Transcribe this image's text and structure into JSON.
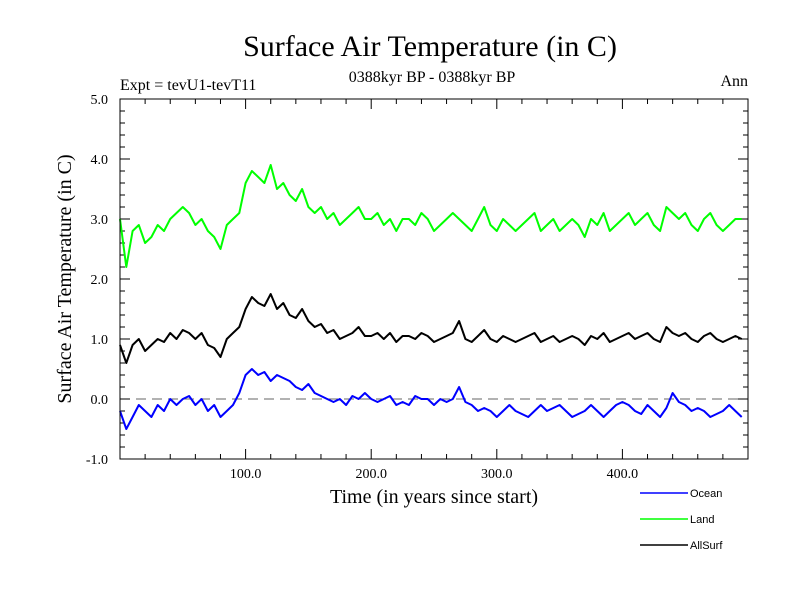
{
  "chart_data": {
    "type": "line",
    "title": "Surface Air Temperature (in C)",
    "subtitle": "0388kyr BP - 0388kyr BP",
    "expt_label": "Expt = tevU1-tevT11",
    "season_label": "Ann",
    "xlabel": "Time (in years since start)",
    "ylabel": "Surface Air Temperature (in C)",
    "xlim": [
      0,
      500
    ],
    "ylim": [
      -1.0,
      5.0
    ],
    "x_ticks": [
      100,
      200,
      300,
      400
    ],
    "x_tick_labels": [
      "100.0",
      "200.0",
      "300.0",
      "400.0"
    ],
    "y_ticks": [
      -1,
      0,
      1,
      2,
      3,
      4,
      5
    ],
    "y_tick_labels": [
      "-1.0",
      "0.0",
      "1.0",
      "2.0",
      "3.0",
      "4.0",
      "5.0"
    ],
    "reference_line": {
      "y": 0.0,
      "style": "dashed"
    },
    "legend_position": "bottom-right, below plot",
    "series": [
      {
        "name": "Ocean",
        "color": "#0000ff",
        "x": [
          0,
          5,
          10,
          15,
          20,
          25,
          30,
          35,
          40,
          45,
          50,
          55,
          60,
          65,
          70,
          75,
          80,
          85,
          90,
          95,
          100,
          105,
          110,
          115,
          120,
          125,
          130,
          135,
          140,
          145,
          150,
          155,
          160,
          165,
          170,
          175,
          180,
          185,
          190,
          195,
          200,
          205,
          210,
          215,
          220,
          225,
          230,
          235,
          240,
          245,
          250,
          255,
          260,
          265,
          270,
          275,
          280,
          285,
          290,
          295,
          300,
          305,
          310,
          315,
          320,
          325,
          330,
          335,
          340,
          345,
          350,
          355,
          360,
          365,
          370,
          375,
          380,
          385,
          390,
          395,
          400,
          405,
          410,
          415,
          420,
          425,
          430,
          435,
          440,
          445,
          450,
          455,
          460,
          465,
          470,
          475,
          480,
          485,
          490,
          495
        ],
        "values": [
          -0.2,
          -0.5,
          -0.3,
          -0.1,
          -0.2,
          -0.3,
          -0.1,
          -0.2,
          0.0,
          -0.1,
          0.0,
          0.05,
          -0.1,
          0.0,
          -0.2,
          -0.1,
          -0.3,
          -0.2,
          -0.1,
          0.1,
          0.4,
          0.5,
          0.4,
          0.45,
          0.3,
          0.4,
          0.35,
          0.3,
          0.2,
          0.15,
          0.25,
          0.1,
          0.05,
          0.0,
          -0.05,
          0.0,
          -0.1,
          0.05,
          0.0,
          0.1,
          0.0,
          -0.05,
          0.0,
          0.05,
          -0.1,
          -0.05,
          -0.1,
          0.05,
          0.0,
          0.0,
          -0.1,
          0.0,
          -0.05,
          0.0,
          0.2,
          -0.05,
          -0.1,
          -0.2,
          -0.15,
          -0.2,
          -0.3,
          -0.2,
          -0.1,
          -0.2,
          -0.25,
          -0.3,
          -0.2,
          -0.1,
          -0.2,
          -0.15,
          -0.1,
          -0.2,
          -0.3,
          -0.25,
          -0.2,
          -0.1,
          -0.2,
          -0.3,
          -0.2,
          -0.1,
          -0.05,
          -0.1,
          -0.2,
          -0.25,
          -0.1,
          -0.2,
          -0.3,
          -0.15,
          0.1,
          -0.05,
          -0.1,
          -0.2,
          -0.15,
          -0.2,
          -0.3,
          -0.25,
          -0.2,
          -0.1,
          -0.2,
          -0.3
        ]
      },
      {
        "name": "Land",
        "color": "#00ff00",
        "x": [
          0,
          5,
          10,
          15,
          20,
          25,
          30,
          35,
          40,
          45,
          50,
          55,
          60,
          65,
          70,
          75,
          80,
          85,
          90,
          95,
          100,
          105,
          110,
          115,
          120,
          125,
          130,
          135,
          140,
          145,
          150,
          155,
          160,
          165,
          170,
          175,
          180,
          185,
          190,
          195,
          200,
          205,
          210,
          215,
          220,
          225,
          230,
          235,
          240,
          245,
          250,
          255,
          260,
          265,
          270,
          275,
          280,
          285,
          290,
          295,
          300,
          305,
          310,
          315,
          320,
          325,
          330,
          335,
          340,
          345,
          350,
          355,
          360,
          365,
          370,
          375,
          380,
          385,
          390,
          395,
          400,
          405,
          410,
          415,
          420,
          425,
          430,
          435,
          440,
          445,
          450,
          455,
          460,
          465,
          470,
          475,
          480,
          485,
          490,
          495
        ],
        "values": [
          3.0,
          2.2,
          2.8,
          2.9,
          2.6,
          2.7,
          2.9,
          2.8,
          3.0,
          3.1,
          3.2,
          3.1,
          2.9,
          3.0,
          2.8,
          2.7,
          2.5,
          2.9,
          3.0,
          3.1,
          3.6,
          3.8,
          3.7,
          3.6,
          3.9,
          3.5,
          3.6,
          3.4,
          3.3,
          3.5,
          3.2,
          3.1,
          3.2,
          3.0,
          3.1,
          2.9,
          3.0,
          3.1,
          3.2,
          3.0,
          3.0,
          3.1,
          2.9,
          3.0,
          2.8,
          3.0,
          3.0,
          2.9,
          3.1,
          3.0,
          2.8,
          2.9,
          3.0,
          3.1,
          3.0,
          2.9,
          2.8,
          3.0,
          3.2,
          2.9,
          2.8,
          3.0,
          2.9,
          2.8,
          2.9,
          3.0,
          3.1,
          2.8,
          2.9,
          3.0,
          2.8,
          2.9,
          3.0,
          2.9,
          2.7,
          3.0,
          2.9,
          3.1,
          2.8,
          2.9,
          3.0,
          3.1,
          2.9,
          3.0,
          3.1,
          2.9,
          2.8,
          3.2,
          3.1,
          3.0,
          3.1,
          2.9,
          2.8,
          3.0,
          3.1,
          2.9,
          2.8,
          2.9,
          3.0,
          3.0
        ]
      },
      {
        "name": "AllSurf",
        "color": "#000000",
        "x": [
          0,
          5,
          10,
          15,
          20,
          25,
          30,
          35,
          40,
          45,
          50,
          55,
          60,
          65,
          70,
          75,
          80,
          85,
          90,
          95,
          100,
          105,
          110,
          115,
          120,
          125,
          130,
          135,
          140,
          145,
          150,
          155,
          160,
          165,
          170,
          175,
          180,
          185,
          190,
          195,
          200,
          205,
          210,
          215,
          220,
          225,
          230,
          235,
          240,
          245,
          250,
          255,
          260,
          265,
          270,
          275,
          280,
          285,
          290,
          295,
          300,
          305,
          310,
          315,
          320,
          325,
          330,
          335,
          340,
          345,
          350,
          355,
          360,
          365,
          370,
          375,
          380,
          385,
          390,
          395,
          400,
          405,
          410,
          415,
          420,
          425,
          430,
          435,
          440,
          445,
          450,
          455,
          460,
          465,
          470,
          475,
          480,
          485,
          490,
          495
        ],
        "values": [
          0.9,
          0.6,
          0.9,
          1.0,
          0.8,
          0.9,
          1.0,
          0.95,
          1.1,
          1.0,
          1.15,
          1.1,
          1.0,
          1.1,
          0.9,
          0.85,
          0.7,
          1.0,
          1.1,
          1.2,
          1.5,
          1.7,
          1.6,
          1.55,
          1.75,
          1.5,
          1.6,
          1.4,
          1.35,
          1.5,
          1.3,
          1.2,
          1.25,
          1.1,
          1.15,
          1.0,
          1.05,
          1.1,
          1.2,
          1.05,
          1.05,
          1.1,
          1.0,
          1.1,
          0.95,
          1.05,
          1.05,
          1.0,
          1.1,
          1.05,
          0.95,
          1.0,
          1.05,
          1.1,
          1.3,
          1.0,
          0.95,
          1.05,
          1.15,
          1.0,
          0.95,
          1.05,
          1.0,
          0.95,
          1.0,
          1.05,
          1.1,
          0.95,
          1.0,
          1.05,
          0.95,
          1.0,
          1.05,
          1.0,
          0.9,
          1.05,
          1.0,
          1.1,
          0.95,
          1.0,
          1.05,
          1.1,
          1.0,
          1.05,
          1.1,
          1.0,
          0.95,
          1.2,
          1.1,
          1.05,
          1.1,
          1.0,
          0.95,
          1.05,
          1.1,
          1.0,
          0.95,
          1.0,
          1.05,
          1.0
        ]
      }
    ]
  }
}
